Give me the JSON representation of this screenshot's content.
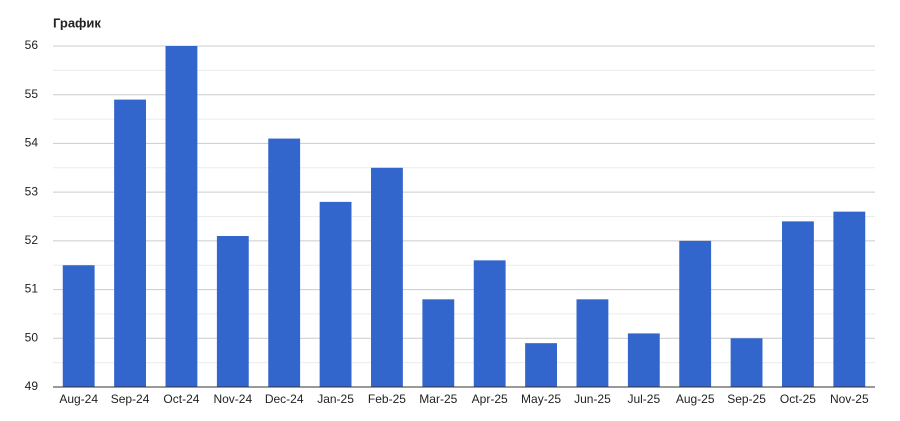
{
  "chart_data": {
    "type": "bar",
    "title": "График",
    "categories": [
      "Aug-24",
      "Sep-24",
      "Oct-24",
      "Nov-24",
      "Dec-24",
      "Jan-25",
      "Feb-25",
      "Mar-25",
      "Apr-25",
      "May-25",
      "Jun-25",
      "Jul-25",
      "Aug-25",
      "Sep-25",
      "Oct-25",
      "Nov-25"
    ],
    "values": [
      51.5,
      54.9,
      56.0,
      52.1,
      54.1,
      52.8,
      53.5,
      50.8,
      51.6,
      49.9,
      50.8,
      50.1,
      52.0,
      50.0,
      52.4,
      52.6
    ],
    "color": "#3366cc",
    "ylim": [
      49,
      56
    ],
    "yticks": [
      49,
      50,
      51,
      52,
      53,
      54,
      55,
      56
    ],
    "grid": true,
    "minor_grid": true
  }
}
